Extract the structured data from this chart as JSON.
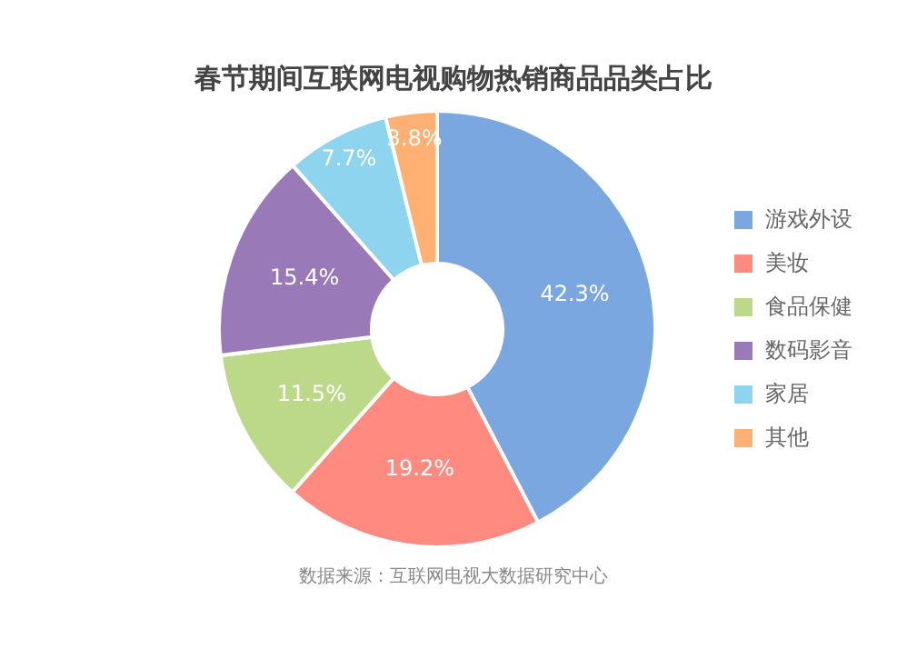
{
  "chart_data": {
    "type": "donut",
    "title": "春节期间互联网电视购物热销商品品类占比",
    "categories": [
      "游戏外设",
      "美妆",
      "食品保健",
      "数码影音",
      "家居",
      "其他"
    ],
    "values": [
      42.3,
      19.2,
      11.5,
      15.4,
      7.7,
      3.8
    ],
    "colors": [
      "#7ba7e0",
      "#ff8a80",
      "#bcd98a",
      "#9a79b8",
      "#8fd4ee",
      "#ffb072"
    ],
    "value_labels": [
      "42.3%",
      "19.2%",
      "11.5%",
      "15.4%",
      "7.7%",
      "3.8%"
    ],
    "legend": "right",
    "annotations": [
      "数据来源：互联网电视大数据研究中心"
    ]
  }
}
